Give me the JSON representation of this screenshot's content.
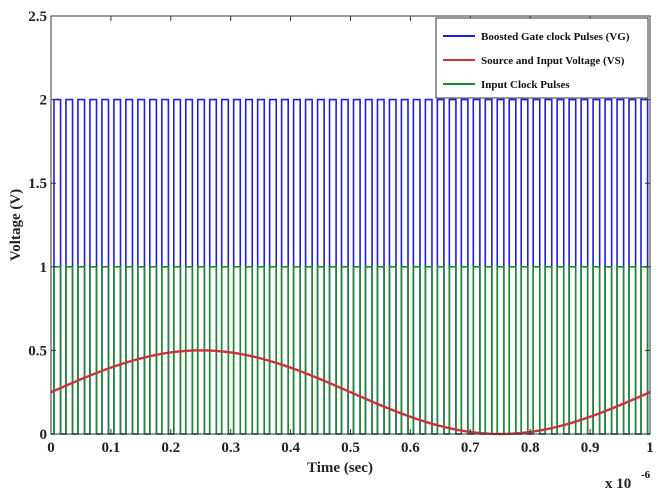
{
  "chart_data": {
    "type": "line",
    "xlabel": "Time (sec)",
    "ylabel": "Voltage (V)",
    "x_multiplier_label": "x 10",
    "x_multiplier_exponent": "-6",
    "xlim": [
      0,
      1
    ],
    "ylim": [
      0,
      2.5
    ],
    "x_ticks": [
      0,
      0.1,
      0.2,
      0.3,
      0.4,
      0.5,
      0.6,
      0.7,
      0.8,
      0.9,
      1
    ],
    "x_tick_labels": [
      "0",
      "0.1",
      "0.2",
      "0.3",
      "0.4",
      "0.5",
      "0.6",
      "0.7",
      "0.8",
      "0.9",
      "1"
    ],
    "y_ticks": [
      0,
      0.5,
      1,
      1.5,
      2,
      2.5
    ],
    "y_tick_labels": [
      "0",
      "0.5",
      "1",
      "1.5",
      "2",
      "2.5"
    ],
    "grid": false,
    "legend_position": "top-right",
    "series": [
      {
        "name": "Boosted Gate clock Pulses (VG)",
        "color": "#1f1fd6",
        "kind": "pulse",
        "high": 2,
        "low": 0,
        "pulse_count": 50,
        "duty": 0.55
      },
      {
        "name": "Source and Input Voltage (VS)",
        "color": "#c8343a",
        "kind": "sine",
        "offset": 0.25,
        "amplitude": 0.25,
        "period": 1
      },
      {
        "name": "Input Clock Pulses",
        "color": "#1f8a2c",
        "kind": "pulse",
        "high": 1,
        "low": 0,
        "pulse_count": 50,
        "duty": 0.55
      }
    ]
  }
}
